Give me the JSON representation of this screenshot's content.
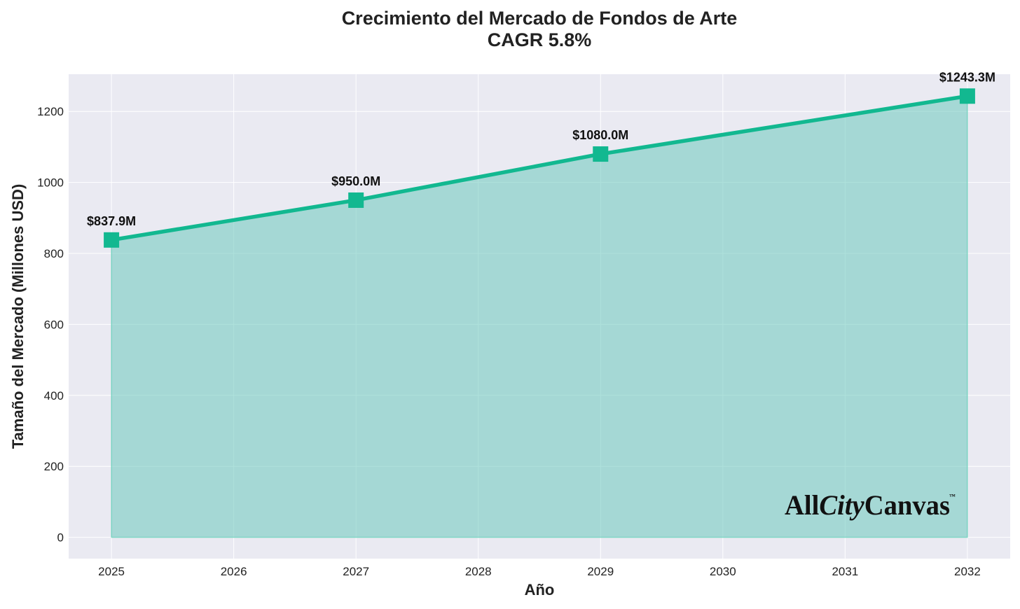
{
  "chart_data": {
    "type": "area",
    "title": "Crecimiento del Mercado de Fondos de Arte",
    "subtitle": "CAGR 5.8%",
    "xlabel": "Año",
    "ylabel": "Tamaño del Mercado (Millones USD)",
    "xlim": [
      2024.65,
      2032.35
    ],
    "ylim": [
      -60,
      1305
    ],
    "x_ticks": [
      2025,
      2026,
      2027,
      2028,
      2029,
      2030,
      2031,
      2032
    ],
    "y_ticks": [
      0,
      200,
      400,
      600,
      800,
      1000,
      1200
    ],
    "grid": true,
    "series": [
      {
        "x": [
          2025,
          2027,
          2029,
          2032
        ],
        "y": [
          837.9,
          950.0,
          1080.0,
          1243.3
        ],
        "labels": [
          "$837.9M",
          "$950.0M",
          "$1080.0M",
          "$1243.3M"
        ],
        "color": "#12b890",
        "fill_color": "#6cc9bd",
        "marker": "square"
      }
    ]
  },
  "watermark": {
    "parts": [
      "All",
      "City",
      "Canvas"
    ],
    "tm": "™"
  },
  "colors": {
    "plot_background": "#eaeaf2",
    "grid": "#ffffff",
    "text": "#222222"
  }
}
